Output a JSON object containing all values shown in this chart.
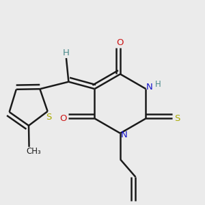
{
  "bg_color": "#ebebeb",
  "atom_colors": {
    "C": "#1a1a1a",
    "H": "#4a8a8a",
    "N": "#1515cc",
    "O": "#cc1515",
    "S": "#aaaa00"
  },
  "bond_color": "#1a1a1a",
  "figsize": [
    3.0,
    3.0
  ],
  "dpi": 100
}
